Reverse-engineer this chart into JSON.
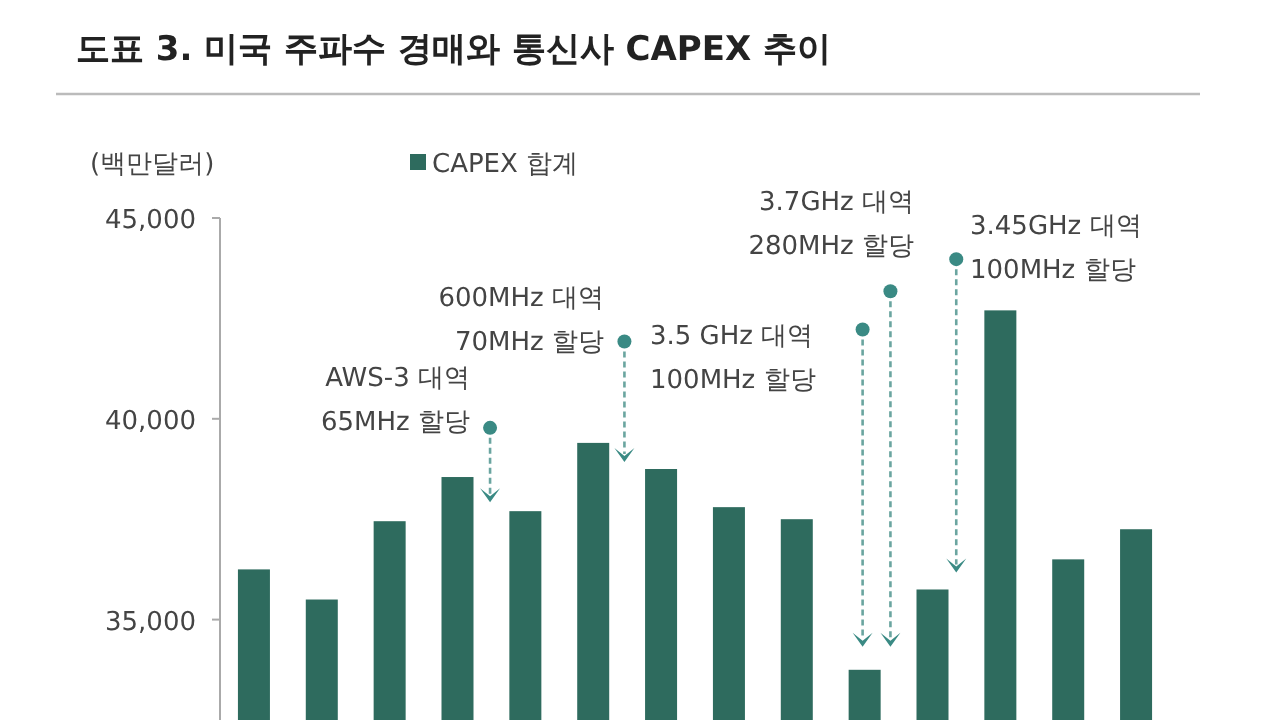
{
  "chart_data": {
    "type": "bar",
    "title": "도표 3. 미국 주파수 경매와 통신사 CAPEX 추이",
    "ylabel": "(백만달러)",
    "categories": [
      null,
      null,
      null,
      null,
      null,
      null,
      null,
      null,
      null,
      null,
      null,
      null,
      null,
      null
    ],
    "series": [
      {
        "name": "CAPEX 합계",
        "color": "#2e6b5e",
        "values": [
          36250,
          35500,
          37450,
          38550,
          37700,
          39400,
          38750,
          37800,
          37500,
          33750,
          35750,
          42700,
          36500,
          37250
        ]
      }
    ],
    "ylim": [
      32500,
      45000
    ],
    "yticks": [
      {
        "value": 35000,
        "label": "35,000"
      },
      {
        "value": 40000,
        "label": "40,000"
      },
      {
        "value": 45000,
        "label": "45,000"
      }
    ],
    "legend": "top",
    "grid": false,
    "annotations": [
      "AWS-3 대역\n65MHz 할당",
      "600MHz 대역\n70MHz 할당",
      "3.5 GHz 대역\n100MHz 할당",
      "3.7GHz 대역\n280MHz 할당",
      "3.45GHz 대역\n100MHz 할당"
    ]
  }
}
